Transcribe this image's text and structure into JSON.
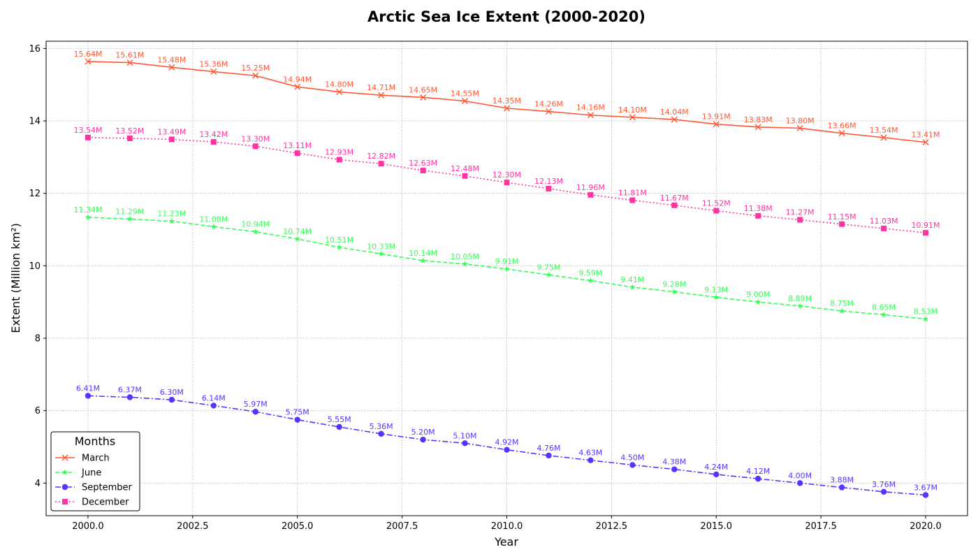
{
  "chart_data": {
    "type": "line",
    "title": "Arctic Sea Ice Extent (2000-2020)",
    "xlabel": "Year",
    "ylabel": "Extent (Million km²)",
    "x": [
      2000,
      2001,
      2002,
      2003,
      2004,
      2005,
      2006,
      2007,
      2008,
      2009,
      2010,
      2011,
      2012,
      2013,
      2014,
      2015,
      2016,
      2017,
      2018,
      2019,
      2020
    ],
    "xlim": [
      1999,
      2021
    ],
    "ylim": [
      3.1,
      16.2
    ],
    "xticks": [
      "2000.0",
      "2002.5",
      "2005.0",
      "2007.5",
      "2010.0",
      "2012.5",
      "2015.0",
      "2017.5",
      "2020.0"
    ],
    "yticks": [
      "4",
      "6",
      "8",
      "10",
      "12",
      "14",
      "16"
    ],
    "grid": true,
    "legend": {
      "title": "Months",
      "position": "lower-left"
    },
    "series": [
      {
        "name": "March",
        "color": "#ff5733",
        "marker": "x",
        "linestyle": "solid",
        "values": [
          15.64,
          15.61,
          15.48,
          15.36,
          15.25,
          14.94,
          14.8,
          14.71,
          14.65,
          14.55,
          14.35,
          14.26,
          14.16,
          14.1,
          14.04,
          13.91,
          13.83,
          13.8,
          13.66,
          13.54,
          13.41
        ],
        "labels": [
          "15.64M",
          "15.61M",
          "15.48M",
          "15.36M",
          "15.25M",
          "14.94M",
          "14.80M",
          "14.71M",
          "14.65M",
          "14.55M",
          "14.35M",
          "14.26M",
          "14.16M",
          "14.10M",
          "14.04M",
          "13.91M",
          "13.83M",
          "13.80M",
          "13.66M",
          "13.54M",
          "13.41M"
        ]
      },
      {
        "name": "June",
        "color": "#33ff57",
        "marker": "star",
        "linestyle": "dashed",
        "values": [
          11.34,
          11.29,
          11.23,
          11.08,
          10.94,
          10.74,
          10.51,
          10.33,
          10.14,
          10.05,
          9.91,
          9.75,
          9.59,
          9.41,
          9.28,
          9.13,
          9.0,
          8.89,
          8.75,
          8.65,
          8.53
        ],
        "labels": [
          "11.34M",
          "11.29M",
          "11.23M",
          "11.08M",
          "10.94M",
          "10.74M",
          "10.51M",
          "10.33M",
          "10.14M",
          "10.05M",
          "9.91M",
          "9.75M",
          "9.59M",
          "9.41M",
          "9.28M",
          "9.13M",
          "9.00M",
          "8.89M",
          "8.75M",
          "8.65M",
          "8.53M"
        ]
      },
      {
        "name": "September",
        "color": "#5733ff",
        "marker": "circle",
        "linestyle": "dashdot",
        "values": [
          6.41,
          6.37,
          6.3,
          6.14,
          5.97,
          5.75,
          5.55,
          5.36,
          5.2,
          5.1,
          4.92,
          4.76,
          4.63,
          4.5,
          4.38,
          4.24,
          4.12,
          4.0,
          3.88,
          3.76,
          3.67
        ],
        "labels": [
          "6.41M",
          "6.37M",
          "6.30M",
          "6.14M",
          "5.97M",
          "5.75M",
          "5.55M",
          "5.36M",
          "5.20M",
          "5.10M",
          "4.92M",
          "4.76M",
          "4.63M",
          "4.50M",
          "4.38M",
          "4.24M",
          "4.12M",
          "4.00M",
          "3.88M",
          "3.76M",
          "3.67M"
        ]
      },
      {
        "name": "December",
        "color": "#ff33a1",
        "marker": "square",
        "linestyle": "dotted",
        "values": [
          13.54,
          13.52,
          13.49,
          13.42,
          13.3,
          13.11,
          12.93,
          12.82,
          12.63,
          12.48,
          12.3,
          12.13,
          11.96,
          11.81,
          11.67,
          11.52,
          11.38,
          11.27,
          11.15,
          11.03,
          10.91
        ],
        "labels": [
          "13.54M",
          "13.52M",
          "13.49M",
          "13.42M",
          "13.30M",
          "13.11M",
          "12.93M",
          "12.82M",
          "12.63M",
          "12.48M",
          "12.30M",
          "12.13M",
          "11.96M",
          "11.81M",
          "11.67M",
          "11.52M",
          "11.38M",
          "11.27M",
          "11.15M",
          "11.03M",
          "10.91M"
        ]
      }
    ]
  }
}
